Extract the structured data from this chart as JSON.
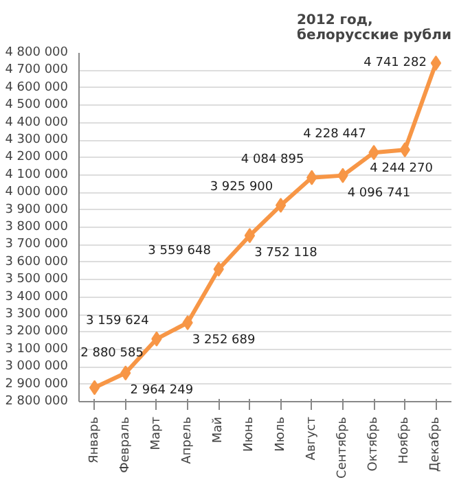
{
  "chart_data": {
    "type": "line",
    "title": "2012 год,\nбелорусские рубли",
    "categories": [
      "Январь",
      "Февраль",
      "Март",
      "Апрель",
      "Май",
      "Июнь",
      "Июль",
      "Август",
      "Сентябрь",
      "Октябрь",
      "Ноябрь",
      "Декабрь"
    ],
    "series": [
      {
        "color": "#f79646",
        "values": [
          2880585,
          2964249,
          3159624,
          3252689,
          3559648,
          3752118,
          3925900,
          4084895,
          4096741,
          4228447,
          4244270,
          4741282
        ]
      }
    ],
    "ylim": [
      2800000,
      4800000
    ],
    "yticks": [
      {
        "value": 2800000,
        "label": "2 800 000"
      },
      {
        "value": 2900000,
        "label": "2 900 000"
      },
      {
        "value": 3000000,
        "label": "3 000 000"
      },
      {
        "value": 3100000,
        "label": "3 100 000"
      },
      {
        "value": 3200000,
        "label": "3 200 000"
      },
      {
        "value": 3300000,
        "label": "3 300 000"
      },
      {
        "value": 3400000,
        "label": "3 400 000"
      },
      {
        "value": 3500000,
        "label": "3 500 000"
      },
      {
        "value": 3600000,
        "label": "3 600 000"
      },
      {
        "value": 3700000,
        "label": "3 700 000"
      },
      {
        "value": 3800000,
        "label": "3 800 000"
      },
      {
        "value": 3900000,
        "label": "3 900 000"
      },
      {
        "value": 4000000,
        "label": "4 000 000"
      },
      {
        "value": 4100000,
        "label": "4 100 000"
      },
      {
        "value": 4200000,
        "label": "4 200 000"
      },
      {
        "value": 4300000,
        "label": "4 300 000"
      },
      {
        "value": 4400000,
        "label": "4 400 000"
      },
      {
        "value": 4500000,
        "label": "4 500 000"
      },
      {
        "value": 4600000,
        "label": "4 600 000"
      },
      {
        "value": 4700000,
        "label": "4 700 000"
      },
      {
        "value": 4800000,
        "label": "4 800 000"
      }
    ],
    "grid": "y",
    "marker": "diamond",
    "line_style": "solid",
    "data_labels": true
  }
}
